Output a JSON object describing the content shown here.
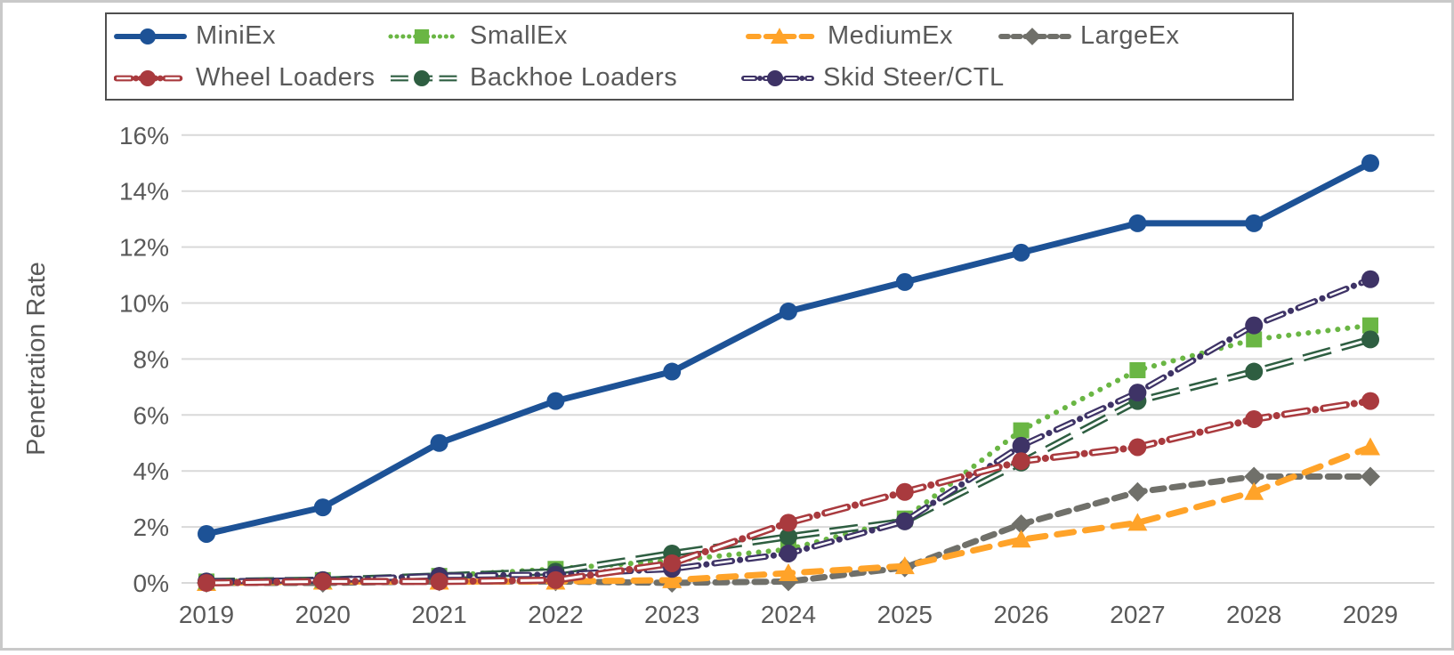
{
  "page": {
    "background": "#ffffff",
    "frame_border_color": "#c9c9c9",
    "legend_border_color": "#4f4f4f",
    "text_color": "#595959",
    "gridline_color": "#d9d9d9"
  },
  "chart_data": {
    "type": "line",
    "title": "",
    "xlabel": "",
    "ylabel": "Penetration Rate",
    "ylim": [
      0,
      16
    ],
    "grid": true,
    "legend_position": "top",
    "ytick_values": [
      0,
      2,
      4,
      6,
      8,
      10,
      12,
      14,
      16
    ],
    "ytick_labels": [
      "0%",
      "2%",
      "4%",
      "6%",
      "8%",
      "10%",
      "12%",
      "14%",
      "16%"
    ],
    "x": [
      "2019",
      "2020",
      "2021",
      "2022",
      "2023",
      "2024",
      "2025",
      "2026",
      "2027",
      "2028",
      "2029"
    ],
    "unit": "percent",
    "series": [
      {
        "name": "MiniEx",
        "color": "#1d5296",
        "marker": "circle",
        "line_style": "solid",
        "values": [
          1.75,
          2.7,
          5.0,
          6.5,
          7.55,
          9.7,
          10.75,
          11.8,
          12.85,
          12.85,
          15.0
        ]
      },
      {
        "name": "SmallEx",
        "color": "#6ab644",
        "marker": "square",
        "line_style": "dotted",
        "values": [
          0.05,
          0.1,
          0.25,
          0.5,
          0.8,
          1.2,
          2.3,
          5.45,
          7.6,
          8.7,
          9.2
        ]
      },
      {
        "name": "MediumEx",
        "color": "#ffa329",
        "marker": "triangle",
        "line_style": "dash-long",
        "values": [
          0.0,
          0.05,
          0.05,
          0.05,
          0.1,
          0.35,
          0.6,
          1.55,
          2.15,
          3.25,
          4.85
        ]
      },
      {
        "name": "LargeEx",
        "color": "#70706a",
        "marker": "diamond",
        "line_style": "dash",
        "values": [
          0.0,
          0.0,
          0.05,
          0.05,
          0.0,
          0.05,
          0.55,
          2.1,
          3.25,
          3.8,
          3.8
        ]
      },
      {
        "name": "Wheel Loaders",
        "color": "#a93a3e",
        "marker": "circle",
        "line_style": "dash-dot-compound",
        "values": [
          0.0,
          0.05,
          0.05,
          0.1,
          0.7,
          2.15,
          3.25,
          4.35,
          4.85,
          5.85,
          6.5
        ]
      },
      {
        "name": "Backhoe Loaders",
        "color": "#2e5e41",
        "marker": "circle",
        "line_style": "dash-compound",
        "values": [
          0.05,
          0.1,
          0.25,
          0.4,
          1.05,
          1.65,
          2.2,
          4.3,
          6.5,
          7.55,
          8.7
        ]
      },
      {
        "name": "Skid Steer/CTL",
        "color": "#3e3366",
        "marker": "circle",
        "line_style": "dash-dot-compound-sm",
        "values": [
          0.05,
          0.1,
          0.25,
          0.3,
          0.5,
          1.05,
          2.2,
          4.9,
          6.8,
          9.2,
          10.85
        ]
      }
    ]
  }
}
